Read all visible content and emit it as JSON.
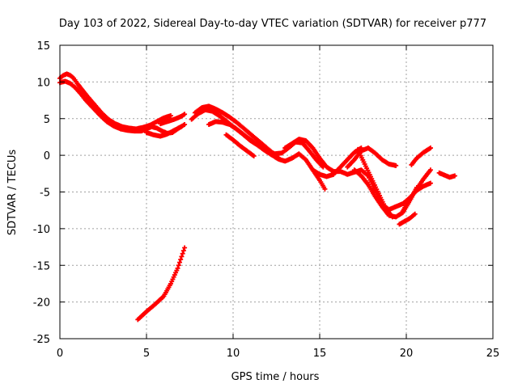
{
  "chart_data": {
    "type": "scatter",
    "title": "Day 103 of 2022, Sidereal Day-to-day VTEC variation (SDTVAR) for receiver p777",
    "xlabel": "GPS time / hours",
    "ylabel": "SDTVAR / TECUs",
    "xlim": [
      0,
      25
    ],
    "ylim": [
      -25,
      15
    ],
    "xticks": [
      0,
      5,
      10,
      15,
      20,
      25
    ],
    "yticks": [
      -25,
      -20,
      -15,
      -10,
      -5,
      0,
      5,
      10,
      15
    ],
    "grid": true,
    "marker": "plus",
    "color": "#ff0000",
    "series": [
      {
        "name": "track-a",
        "x": [
          0.0,
          0.2,
          0.4,
          0.6,
          0.8,
          1.0,
          1.3,
          1.6,
          2.0,
          2.4,
          2.8,
          3.2,
          3.6,
          4.0,
          4.4,
          4.8,
          5.2,
          5.6,
          6.0,
          6.4
        ],
        "y": [
          10.5,
          10.9,
          11.1,
          10.9,
          10.5,
          9.8,
          8.9,
          8.0,
          6.9,
          5.8,
          4.9,
          4.3,
          3.9,
          3.7,
          3.6,
          3.8,
          4.1,
          4.6,
          5.1,
          5.4
        ]
      },
      {
        "name": "track-b",
        "x": [
          0.0,
          0.3,
          0.6,
          0.9,
          1.2,
          1.5,
          1.9,
          2.3,
          2.7,
          3.1,
          3.5,
          3.9,
          4.3,
          4.7,
          5.0,
          5.3,
          5.6,
          5.9,
          6.2,
          6.5,
          6.8,
          7.0
        ],
        "y": [
          9.9,
          10.1,
          9.8,
          9.2,
          8.4,
          7.5,
          6.5,
          5.5,
          4.6,
          4.0,
          3.6,
          3.4,
          3.3,
          3.3,
          3.6,
          3.9,
          3.7,
          3.3,
          3.0,
          3.1,
          3.6,
          3.9
        ]
      },
      {
        "name": "track-c",
        "x": [
          5.0,
          5.4,
          5.8,
          6.2,
          6.6,
          7.0,
          7.2
        ],
        "y": [
          3.1,
          2.8,
          2.6,
          2.9,
          3.4,
          3.9,
          4.2
        ]
      },
      {
        "name": "track-d",
        "x": [
          5.8,
          6.2,
          6.6,
          7.0,
          7.2
        ],
        "y": [
          4.3,
          4.6,
          4.9,
          5.3,
          5.6
        ]
      },
      {
        "name": "track-e",
        "x": [
          7.6,
          8.0,
          8.4,
          8.8,
          9.2,
          9.6,
          10.0,
          10.4,
          10.8,
          11.2,
          11.6,
          12.0,
          12.4,
          12.8,
          13.2,
          13.6,
          14.0,
          14.4,
          14.8,
          15.2
        ],
        "y": [
          4.9,
          5.7,
          6.2,
          6.0,
          5.4,
          4.7,
          3.9,
          3.2,
          2.5,
          1.8,
          1.2,
          0.6,
          0.2,
          0.3,
          1.0,
          1.8,
          1.7,
          0.6,
          -0.6,
          -1.6
        ]
      },
      {
        "name": "track-f",
        "x": [
          7.8,
          8.2,
          8.6,
          9.0,
          9.4,
          9.8,
          10.2,
          10.6,
          11.0,
          11.4,
          11.8,
          12.2,
          12.6
        ],
        "y": [
          5.8,
          6.5,
          6.7,
          6.3,
          5.8,
          5.2,
          4.5,
          3.7,
          2.9,
          2.1,
          1.3,
          0.5,
          -0.3
        ]
      },
      {
        "name": "track-g",
        "x": [
          8.6,
          9.0,
          9.4,
          9.8,
          10.2,
          10.6,
          11.0,
          11.4,
          11.8,
          12.2,
          12.6,
          13.0,
          13.4,
          13.8,
          14.2,
          14.6,
          15.0,
          15.3
        ],
        "y": [
          4.2,
          4.6,
          4.5,
          4.2,
          3.6,
          2.8,
          2.0,
          1.4,
          0.7,
          0.1,
          -0.5,
          -0.8,
          -0.4,
          0.2,
          -0.6,
          -2.0,
          -3.4,
          -4.6
        ]
      },
      {
        "name": "track-h",
        "x": [
          9.6,
          10.0,
          10.4,
          10.8,
          11.2
        ],
        "y": [
          2.8,
          2.1,
          1.3,
          0.6,
          -0.1
        ]
      },
      {
        "name": "track-i",
        "x": [
          13.0,
          13.4,
          13.8,
          14.2,
          14.6,
          15.0,
          15.4,
          15.8,
          16.2,
          16.6,
          17.0,
          17.4,
          17.8,
          18.2,
          18.6,
          19.0,
          19.4,
          19.8,
          20.2,
          20.6,
          21.0,
          21.4
        ],
        "y": [
          1.0,
          1.6,
          2.2,
          2.0,
          1.0,
          -0.4,
          -1.6,
          -2.2,
          -2.2,
          -2.6,
          -2.3,
          -2.0,
          -2.8,
          -4.8,
          -6.7,
          -7.4,
          -7.0,
          -6.6,
          -5.8,
          -4.8,
          -4.2,
          -3.8
        ]
      },
      {
        "name": "track-j",
        "x": [
          14.6,
          15.0,
          15.4,
          15.8,
          16.2,
          16.6,
          17.0,
          17.4
        ],
        "y": [
          -2.0,
          -2.6,
          -2.9,
          -2.6,
          -1.6,
          -0.6,
          0.4,
          1.0
        ]
      },
      {
        "name": "track-k",
        "x": [
          16.6,
          17.0,
          17.4,
          17.8,
          18.2,
          18.6,
          19.0,
          19.4
        ],
        "y": [
          -1.6,
          -0.6,
          0.6,
          1.0,
          0.3,
          -0.6,
          -1.2,
          -1.4
        ]
      },
      {
        "name": "track-l",
        "x": [
          17.0,
          17.4,
          17.8,
          18.2,
          18.6,
          19.0,
          19.4,
          19.8,
          20.2,
          20.6
        ],
        "y": [
          -2.0,
          -2.8,
          -4.0,
          -5.6,
          -7.0,
          -8.2,
          -8.4,
          -7.8,
          -6.2,
          -4.4
        ]
      },
      {
        "name": "track-m",
        "x": [
          17.2,
          17.6,
          18.0,
          18.4,
          18.8,
          19.2
        ],
        "y": [
          0.8,
          -1.2,
          -3.2,
          -5.2,
          -7.2,
          -8.4
        ]
      },
      {
        "name": "track-n",
        "x": [
          19.6,
          19.9,
          20.2,
          20.5
        ],
        "y": [
          -9.4,
          -9.0,
          -8.6,
          -8.0
        ]
      },
      {
        "name": "track-o",
        "x": [
          20.3,
          20.6,
          21.0,
          21.4
        ],
        "y": [
          -1.3,
          -0.4,
          0.4,
          1.0
        ]
      },
      {
        "name": "track-p",
        "x": [
          19.8,
          20.2,
          20.6,
          21.0,
          21.4
        ],
        "y": [
          -7.6,
          -6.0,
          -4.6,
          -3.2,
          -2.0
        ]
      },
      {
        "name": "track-q",
        "x": [
          21.9,
          22.2,
          22.5,
          22.8
        ],
        "y": [
          -2.4,
          -2.7,
          -3.0,
          -2.8
        ]
      },
      {
        "name": "track-r",
        "x": [
          4.5,
          5.0,
          5.5,
          6.0,
          6.4,
          6.8,
          7.2
        ],
        "y": [
          -22.4,
          -21.3,
          -20.3,
          -19.2,
          -17.5,
          -15.4,
          -12.6
        ]
      }
    ]
  }
}
